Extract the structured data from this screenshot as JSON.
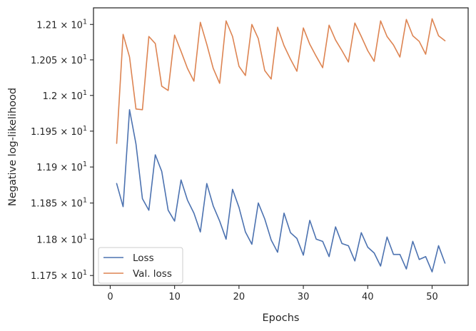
{
  "chart_data": {
    "type": "line",
    "xlabel": "Epochs",
    "ylabel": "Negative log-likelihood",
    "y_scale": "log",
    "xlim": [
      -2.6,
      55.6
    ],
    "ylim": [
      11.7365,
      12.1235
    ],
    "grid": false,
    "legend_position": "lower-left",
    "x_ticks": [
      {
        "value": 0,
        "label": "0"
      },
      {
        "value": 10,
        "label": "10"
      },
      {
        "value": 20,
        "label": "20"
      },
      {
        "value": 30,
        "label": "30"
      },
      {
        "value": 40,
        "label": "40"
      },
      {
        "value": 50,
        "label": "50"
      }
    ],
    "y_ticks": [
      {
        "value": 11.75,
        "mantissa": "1.175",
        "times": "×",
        "base": "10",
        "exp": "1"
      },
      {
        "value": 11.8,
        "mantissa": "1.18",
        "times": "×",
        "base": "10",
        "exp": "1"
      },
      {
        "value": 11.85,
        "mantissa": "1.185",
        "times": "×",
        "base": "10",
        "exp": "1"
      },
      {
        "value": 11.9,
        "mantissa": "1.19",
        "times": "×",
        "base": "10",
        "exp": "1"
      },
      {
        "value": 11.95,
        "mantissa": "1.195",
        "times": "×",
        "base": "10",
        "exp": "1"
      },
      {
        "value": 12.0,
        "mantissa": "1.2",
        "times": "×",
        "base": "10",
        "exp": "1"
      },
      {
        "value": 12.05,
        "mantissa": "1.205",
        "times": "×",
        "base": "10",
        "exp": "1"
      },
      {
        "value": 12.1,
        "mantissa": "1.21",
        "times": "×",
        "base": "10",
        "exp": "1"
      }
    ],
    "x": [
      1,
      2,
      3,
      4,
      5,
      6,
      7,
      8,
      9,
      10,
      11,
      12,
      13,
      14,
      15,
      16,
      17,
      18,
      19,
      20,
      21,
      22,
      23,
      24,
      25,
      26,
      27,
      28,
      29,
      30,
      31,
      32,
      33,
      34,
      35,
      36,
      37,
      38,
      39,
      40,
      41,
      42,
      43,
      44,
      45,
      46,
      47,
      48,
      49,
      50,
      51,
      52
    ],
    "series": [
      {
        "name": "Loss",
        "color": "#4c72b0",
        "values": [
          11.877,
          11.845,
          11.98,
          11.932,
          11.856,
          11.84,
          11.917,
          11.894,
          11.84,
          11.825,
          11.882,
          11.854,
          11.836,
          11.81,
          11.877,
          11.846,
          11.825,
          11.8,
          11.869,
          11.844,
          11.81,
          11.793,
          11.85,
          11.828,
          11.799,
          11.782,
          11.836,
          11.809,
          11.801,
          11.778,
          11.826,
          11.8,
          11.797,
          11.776,
          11.817,
          11.794,
          11.791,
          11.77,
          11.809,
          11.789,
          11.781,
          11.763,
          11.803,
          11.779,
          11.779,
          11.759,
          11.797,
          11.772,
          11.776,
          11.755,
          11.791,
          11.767
        ]
      },
      {
        "name": "Val. loss",
        "color": "#dd8452",
        "values": [
          11.933,
          12.086,
          12.054,
          11.981,
          11.98,
          12.083,
          12.073,
          12.013,
          12.007,
          12.085,
          12.062,
          12.038,
          12.02,
          12.103,
          12.072,
          12.038,
          12.017,
          12.105,
          12.083,
          12.041,
          12.028,
          12.1,
          12.08,
          12.035,
          12.023,
          12.096,
          12.07,
          12.051,
          12.034,
          12.095,
          12.072,
          12.055,
          12.039,
          12.099,
          12.078,
          12.063,
          12.047,
          12.102,
          12.083,
          12.063,
          12.048,
          12.105,
          12.083,
          12.071,
          12.054,
          12.107,
          12.084,
          12.076,
          12.058,
          12.108,
          12.084,
          12.077
        ]
      }
    ]
  }
}
